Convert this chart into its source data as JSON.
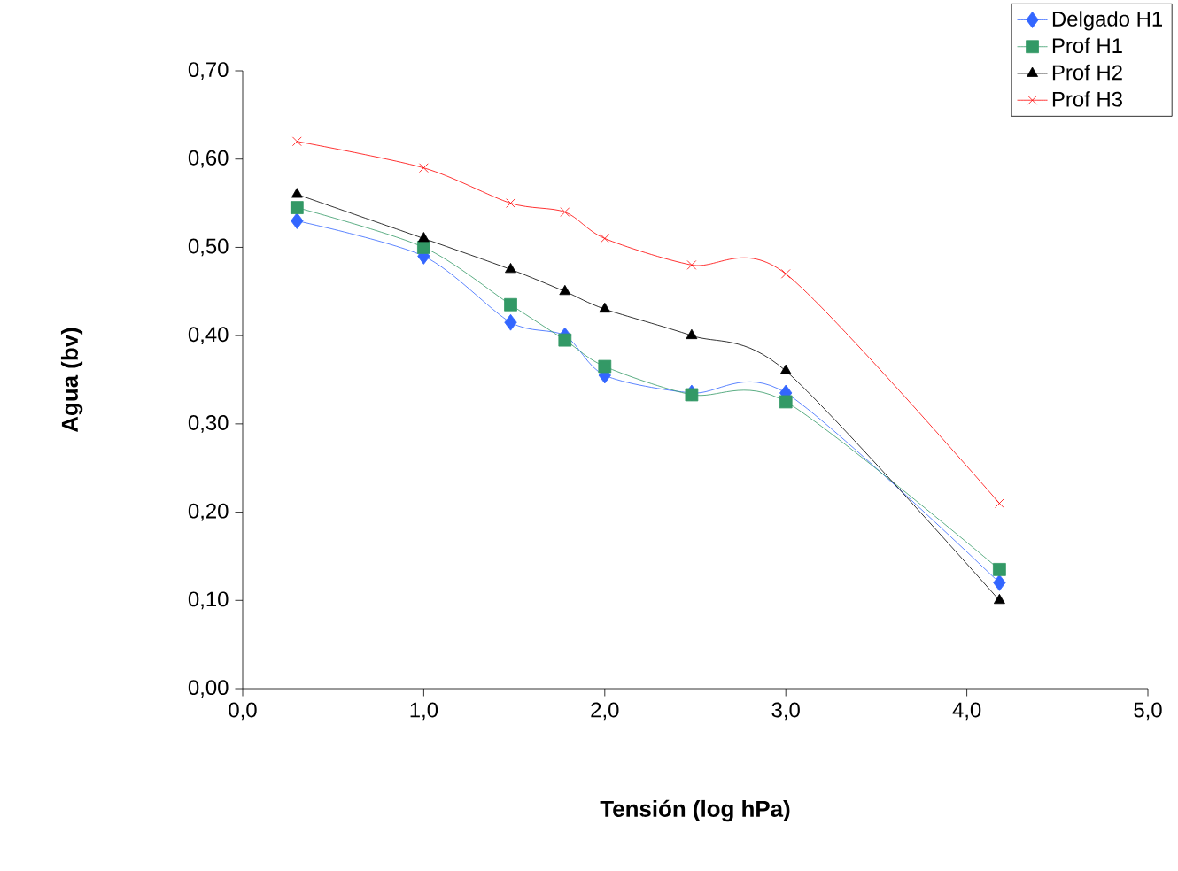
{
  "chart_data": {
    "type": "line",
    "xlabel": "Tensión (log hPa)",
    "ylabel": "Agua (bv)",
    "x": [
      0.3,
      1.0,
      1.48,
      1.78,
      2.0,
      2.48,
      3.0,
      4.18
    ],
    "series": [
      {
        "name": "Delgado H1",
        "color": "#3366ff",
        "marker": "diamond",
        "values": [
          0.53,
          0.49,
          0.415,
          0.4,
          0.355,
          0.335,
          0.335,
          0.12
        ]
      },
      {
        "name": "Prof H1",
        "color": "#339966",
        "marker": "square",
        "values": [
          0.545,
          0.5,
          0.435,
          0.395,
          0.365,
          0.333,
          0.325,
          0.135
        ]
      },
      {
        "name": "Prof H2",
        "color": "#000000",
        "marker": "triangle",
        "values": [
          0.56,
          0.51,
          0.475,
          0.45,
          0.43,
          0.4,
          0.36,
          0.1
        ]
      },
      {
        "name": "Prof H3",
        "color": "#ff0000",
        "marker": "cross",
        "values": [
          0.62,
          0.59,
          0.55,
          0.54,
          0.51,
          0.48,
          0.47,
          0.21
        ]
      }
    ],
    "xlim": [
      0,
      5
    ],
    "xticks": [
      {
        "value": 0,
        "label": "0,0"
      },
      {
        "value": 1,
        "label": "1,0"
      },
      {
        "value": 2,
        "label": "2,0"
      },
      {
        "value": 3,
        "label": "3,0"
      },
      {
        "value": 4,
        "label": "4,0"
      },
      {
        "value": 5,
        "label": "5,0"
      }
    ],
    "ylim": [
      0,
      0.7
    ],
    "yticks": [
      {
        "value": 0,
        "label": "0,00"
      },
      {
        "value": 0.1,
        "label": "0,10"
      },
      {
        "value": 0.2,
        "label": "0,20"
      },
      {
        "value": 0.3,
        "label": "0,30"
      },
      {
        "value": 0.4,
        "label": "0,40"
      },
      {
        "value": 0.5,
        "label": "0,50"
      },
      {
        "value": 0.6,
        "label": "0,60"
      },
      {
        "value": 0.7,
        "label": "0,70"
      }
    ],
    "grid": false,
    "legend": "top right",
    "line_style": "solid"
  }
}
